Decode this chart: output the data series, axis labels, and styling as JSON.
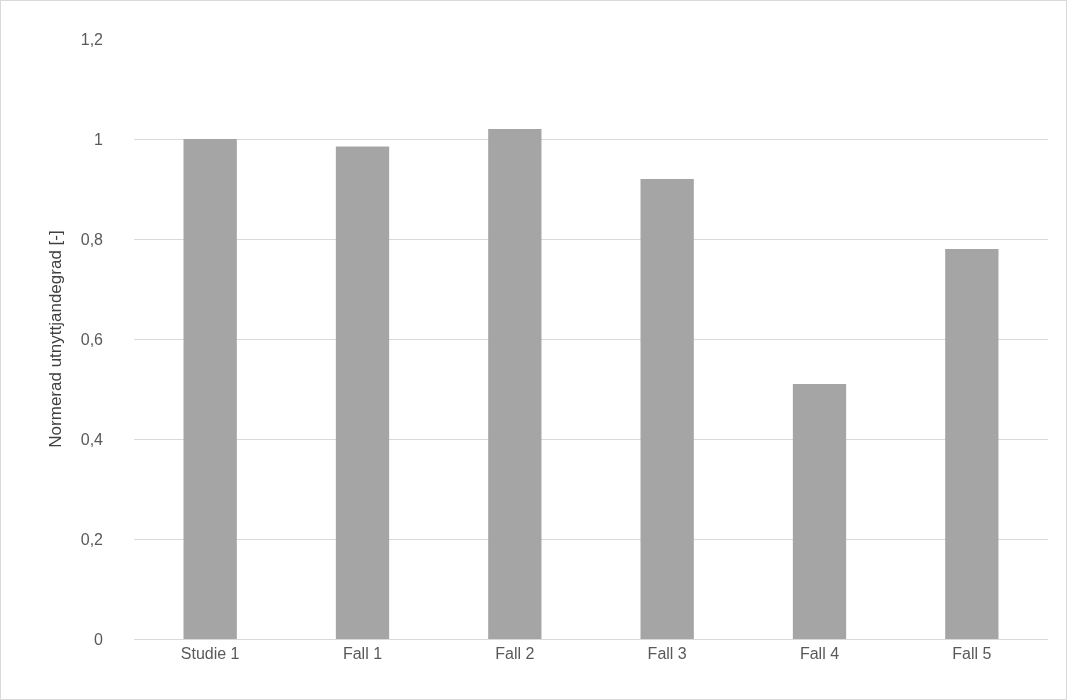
{
  "chart_data": {
    "type": "bar",
    "ylabel": "Normerad utnyttjandegrad [-]",
    "categories": [
      "Studie 1",
      "Fall 1",
      "Fall 2",
      "Fall 3",
      "Fall 4",
      "Fall 5"
    ],
    "values": [
      1.0,
      0.985,
      1.02,
      0.92,
      0.51,
      0.78
    ],
    "color": "#a5a5a5",
    "ylim": [
      0,
      1.2
    ],
    "yticks": [
      0,
      {
        "value": 0.2,
        "label": "0,2"
      },
      {
        "value": 0.4,
        "label": "0,4"
      },
      {
        "value": 0.6,
        "label": "0,6"
      },
      {
        "value": 0.8,
        "label": "0,8"
      },
      1,
      {
        "value": 1.2,
        "label": "1,2"
      }
    ],
    "grid": "y",
    "legend": false
  }
}
